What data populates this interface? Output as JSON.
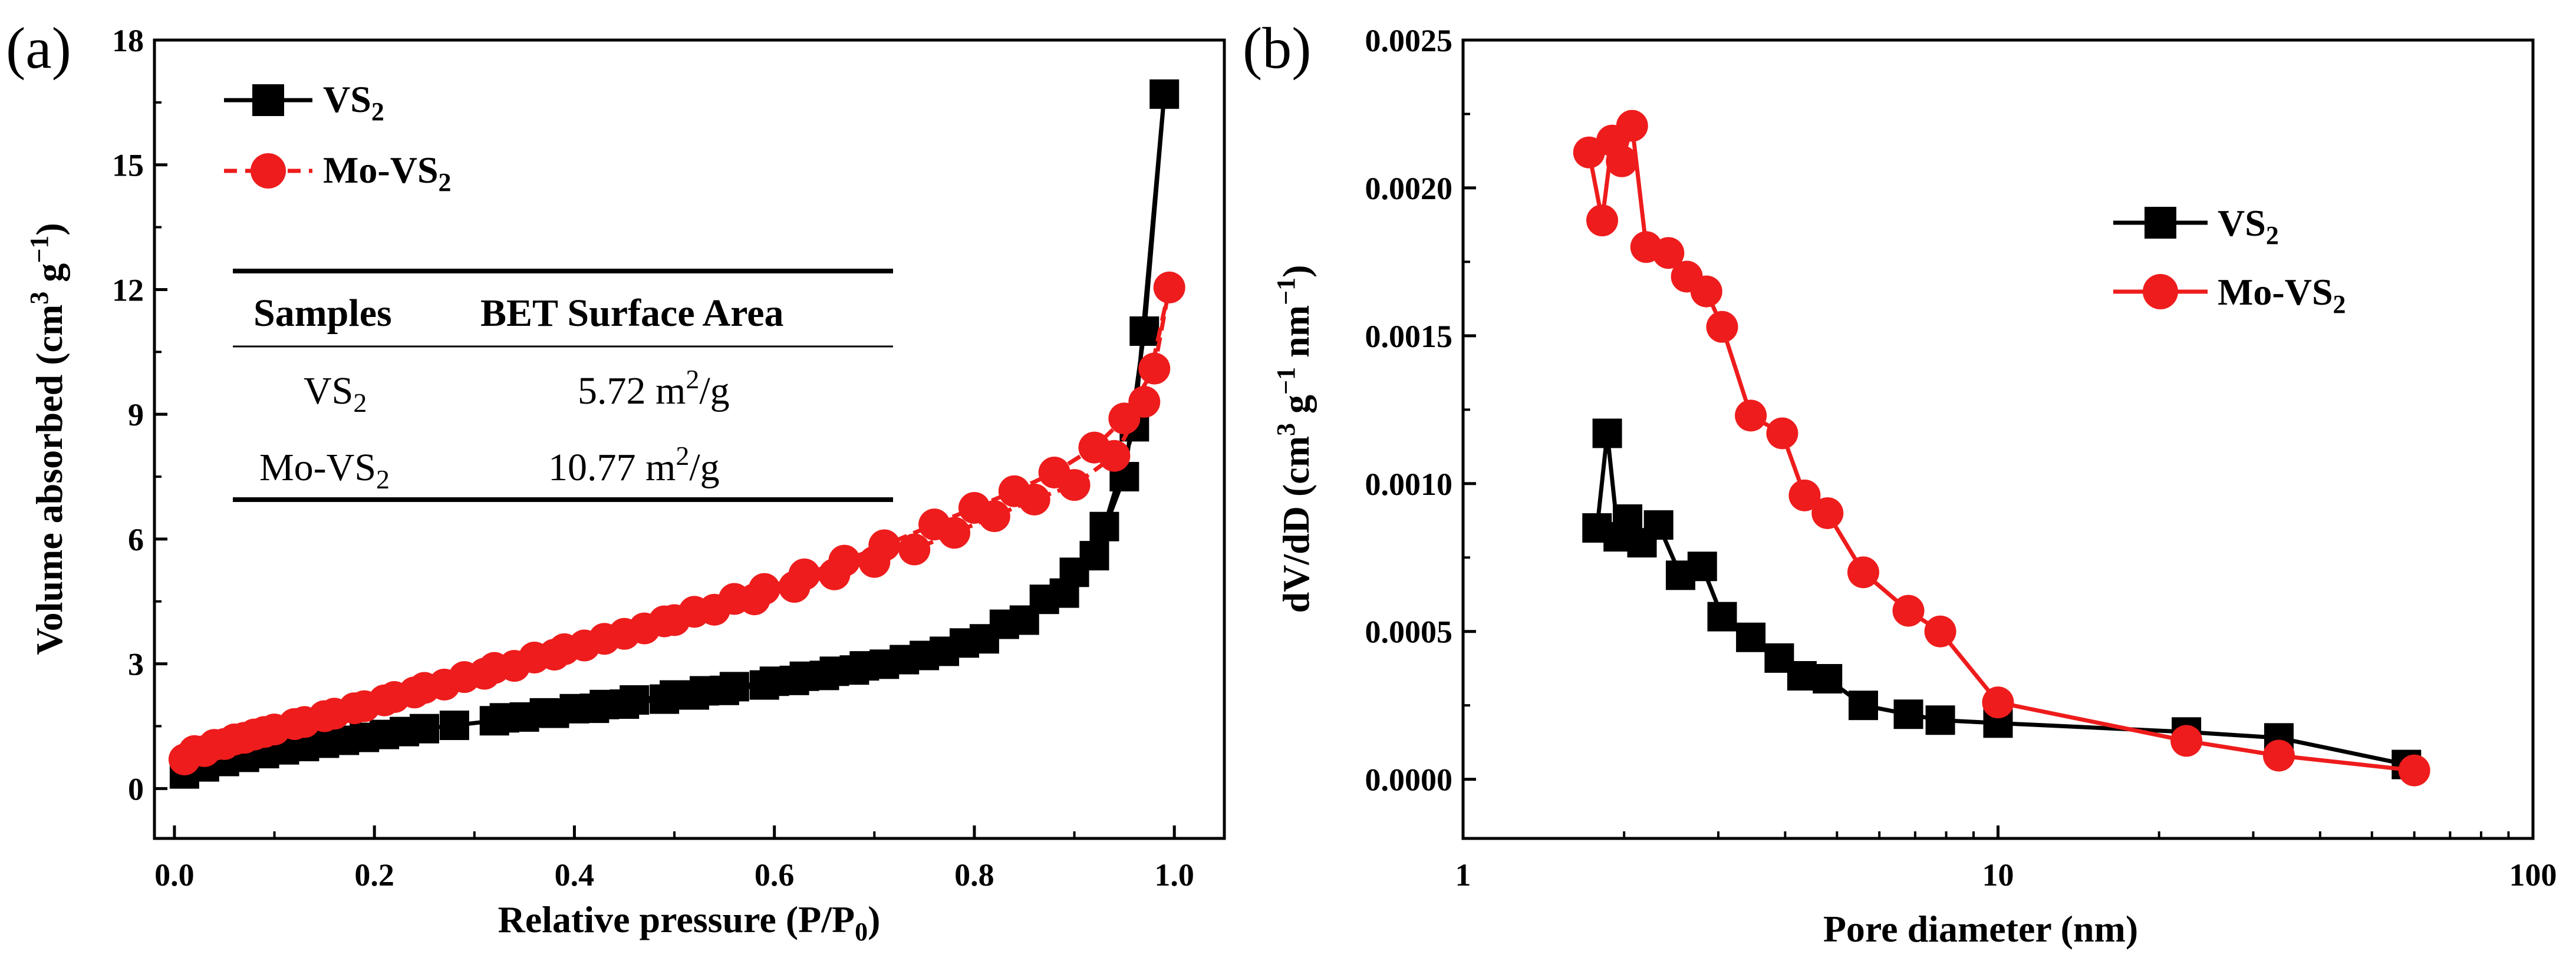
{
  "chart_data": [
    {
      "panel": "(a)",
      "type": "line",
      "xlabel": "Relative pressure (P/P0)",
      "ylabel": "Volume absorbed (cm3 g−1)",
      "xlim": [
        -0.02,
        1.05
      ],
      "ylim": [
        -1.2,
        18
      ],
      "x_ticks": [
        "0.0",
        "0.2",
        "0.4",
        "0.6",
        "0.8",
        "1.0"
      ],
      "y_ticks": [
        "0",
        "3",
        "6",
        "9",
        "12",
        "15",
        "18"
      ],
      "legend_position": "top-left",
      "series": [
        {
          "name": "VS2",
          "marker": "square",
          "color": "#000000",
          "x": [
            0.01,
            0.03,
            0.05,
            0.07,
            0.09,
            0.11,
            0.13,
            0.15,
            0.17,
            0.19,
            0.21,
            0.23,
            0.25,
            0.28,
            0.32,
            0.35,
            0.38,
            0.42,
            0.45,
            0.49,
            0.52,
            0.55,
            0.59,
            0.62,
            0.65,
            0.68,
            0.71,
            0.75,
            0.79,
            0.83,
            0.87,
            0.9,
            0.93,
            0.96,
            0.99,
            0.97,
            0.95,
            0.92,
            0.89,
            0.85,
            0.81,
            0.77,
            0.73,
            0.69,
            0.66,
            0.63,
            0.6,
            0.56,
            0.53,
            0.5,
            0.46,
            0.43,
            0.4,
            0.37,
            0.33
          ],
          "y": [
            0.35,
            0.52,
            0.65,
            0.75,
            0.84,
            0.93,
            1.01,
            1.09,
            1.16,
            1.23,
            1.3,
            1.37,
            1.44,
            1.52,
            1.63,
            1.72,
            1.81,
            1.93,
            2.03,
            2.15,
            2.25,
            2.36,
            2.49,
            2.6,
            2.72,
            2.85,
            2.99,
            3.2,
            3.5,
            3.95,
            4.55,
            5.2,
            6.3,
            8.7,
            16.7,
            11.0,
            7.5,
            5.6,
            4.7,
            4.05,
            3.6,
            3.3,
            3.1,
            2.95,
            2.82,
            2.7,
            2.58,
            2.45,
            2.35,
            2.25,
            2.13,
            2.02,
            1.92,
            1.82,
            1.7
          ]
        },
        {
          "name": "Mo-VS2",
          "marker": "circle",
          "color": "#ee1c1c",
          "x": [
            0.01,
            0.03,
            0.05,
            0.07,
            0.09,
            0.12,
            0.15,
            0.18,
            0.21,
            0.24,
            0.27,
            0.31,
            0.34,
            0.38,
            0.41,
            0.45,
            0.49,
            0.52,
            0.56,
            0.59,
            0.63,
            0.67,
            0.71,
            0.76,
            0.8,
            0.84,
            0.88,
            0.92,
            0.95,
            0.98,
            0.995,
            0.97,
            0.94,
            0.9,
            0.86,
            0.82,
            0.78,
            0.74,
            0.7,
            0.66,
            0.62,
            0.58,
            0.54,
            0.5,
            0.47,
            0.43,
            0.39,
            0.36,
            0.32,
            0.29,
            0.25,
            0.22,
            0.19,
            0.16,
            0.13,
            0.1,
            0.08,
            0.06,
            0.04,
            0.02
          ],
          "y": [
            0.7,
            0.9,
            1.07,
            1.22,
            1.36,
            1.55,
            1.74,
            1.93,
            2.12,
            2.31,
            2.5,
            2.76,
            2.95,
            3.22,
            3.44,
            3.72,
            4.02,
            4.25,
            4.56,
            4.8,
            5.15,
            5.48,
            5.85,
            6.35,
            6.75,
            7.15,
            7.6,
            8.2,
            8.9,
            10.1,
            12.05,
            9.3,
            8.0,
            7.3,
            6.95,
            6.55,
            6.15,
            5.75,
            5.45,
            5.15,
            4.85,
            4.55,
            4.3,
            4.05,
            3.85,
            3.6,
            3.35,
            3.15,
            2.9,
            2.68,
            2.42,
            2.2,
            1.98,
            1.8,
            1.6,
            1.42,
            1.3,
            1.18,
            1.05,
            0.9
          ]
        }
      ],
      "table": {
        "headers": [
          "Samples",
          "BET Surface Area"
        ],
        "rows": [
          {
            "sample": "VS",
            "sample_sub": "2",
            "area": "5.72 m",
            "area_sup": "2",
            "area_unit": "/g"
          },
          {
            "sample": "Mo-VS",
            "sample_sub": "2",
            "area": "10.77 m",
            "area_sup": "2",
            "area_unit": "/g"
          }
        ]
      }
    },
    {
      "panel": "(b)",
      "type": "line",
      "xlabel": "Pore diameter (nm)",
      "ylabel": "dV/dD (cm3 g−1 nm−1)",
      "x_scale": "log",
      "xlim": [
        1,
        100
      ],
      "ylim": [
        -0.0002,
        0.0025
      ],
      "x_ticks": [
        "1",
        "10",
        "100"
      ],
      "y_ticks": [
        "0.0000",
        "0.0005",
        "0.0010",
        "0.0015",
        "0.0020",
        "0.0025"
      ],
      "legend_position": "top-right",
      "series": [
        {
          "name": "VS2",
          "marker": "square",
          "color": "#000000",
          "x": [
            1.78,
            1.86,
            1.95,
            2.03,
            2.16,
            2.32,
            2.55,
            2.8,
            3.05,
            3.45,
            3.9,
            4.3,
            4.8,
            5.6,
            6.8,
            7.8,
            10.0,
            22.5,
            33.5,
            58.0
          ],
          "y": [
            0.00085,
            0.00117,
            0.00082,
            0.00088,
            0.0008,
            0.00086,
            0.00069,
            0.00072,
            0.00055,
            0.00048,
            0.00041,
            0.00035,
            0.00034,
            0.00025,
            0.00022,
            0.0002,
            0.00019,
            0.00016,
            0.00014,
            5e-05
          ]
        },
        {
          "name": "Mo-VS2",
          "marker": "circle",
          "color": "#ee1c1c",
          "x": [
            1.72,
            1.82,
            1.9,
            1.98,
            2.07,
            2.2,
            2.42,
            2.62,
            2.85,
            3.05,
            3.45,
            3.95,
            4.35,
            4.8,
            5.6,
            6.8,
            7.8,
            10.0,
            22.5,
            33.5,
            60.0
          ],
          "y": [
            0.00212,
            0.00189,
            0.00216,
            0.00209,
            0.00221,
            0.0018,
            0.00178,
            0.0017,
            0.00165,
            0.00153,
            0.00123,
            0.00117,
            0.00096,
            0.0009,
            0.0007,
            0.00057,
            0.0005,
            0.00026,
            0.00013,
            8e-05,
            3e-05
          ]
        }
      ]
    }
  ],
  "labels": {
    "panel_a": "(a)",
    "panel_b": "(b)",
    "a_xlabel_main": "Relative pressure (P/P",
    "a_xlabel_sub": "0",
    "a_xlabel_end": ")",
    "a_ylabel_main": "Volume absorbed (cm",
    "a_ylabel_sup1": "3",
    "a_ylabel_mid": " g",
    "a_ylabel_sup2": "−1",
    "a_ylabel_end": ")",
    "b_xlabel": "Pore diameter (nm)",
    "b_ylabel_main": "dV/dD (cm",
    "b_ylabel_sup1": "3",
    "b_ylabel_mid1": " g",
    "b_ylabel_sup2": "−1",
    "b_ylabel_mid2": " nm",
    "b_ylabel_sup3": "−1",
    "b_ylabel_end": ")",
    "legend_vs_main": "VS",
    "legend_vs_sub": "2",
    "legend_mo_main": "Mo-VS",
    "legend_mo_sub": "2"
  },
  "colors": {
    "vs2": "#000000",
    "mo_vs2": "#ee1c1c"
  }
}
